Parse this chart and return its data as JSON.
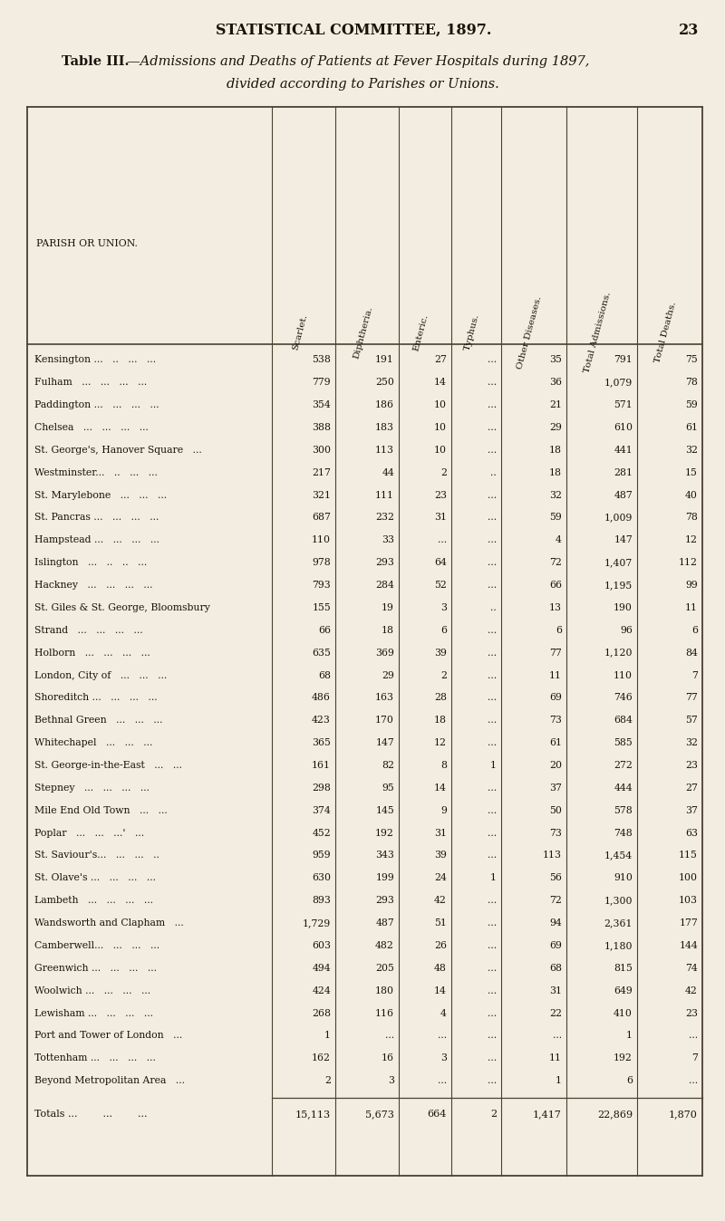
{
  "page_header": "STATISTICAL COMMITTEE, 1897.",
  "page_number": "23",
  "title_prefix": "Table III.",
  "title_line1": "—Admissions and Deaths of Patients at Fever Hospitals during 1897,",
  "title_line2": "divided according to Parishes or Unions.",
  "col_headers": [
    "PARISH OR UNION.",
    "Scarlet.",
    "Diphtheria.",
    "Enteric.",
    "Typhus.",
    "Other Diseases.",
    "Total Admissions.",
    "Total Deaths."
  ],
  "rows": [
    [
      "Kensington ...   ..   ...   ...",
      "538",
      "191",
      "27",
      "...",
      "35",
      "791",
      "75"
    ],
    [
      "Fulham   ...   ...   ...   ...",
      "779",
      "250",
      "14",
      "...",
      "36",
      "1,079",
      "78"
    ],
    [
      "Paddington ...   ...   ...   ...",
      "354",
      "186",
      "10",
      "...",
      "21",
      "571",
      "59"
    ],
    [
      "Chelsea   ...   ...   ...   ...",
      "388",
      "183",
      "10",
      "...",
      "29",
      "610",
      "61"
    ],
    [
      "St. George's, Hanover Square   ...",
      "300",
      "113",
      "10",
      "...",
      "18",
      "441",
      "32"
    ],
    [
      "Westminster...   ..   ...   ...",
      "217",
      "44",
      "2",
      "..",
      "18",
      "281",
      "15"
    ],
    [
      "St. Marylebone   ...   ...   ...",
      "321",
      "111",
      "23",
      "...",
      "32",
      "487",
      "40"
    ],
    [
      "St. Pancras ...   ...   ...   ...",
      "687",
      "232",
      "31",
      "...",
      "59",
      "1,009",
      "78"
    ],
    [
      "Hampstead ...   ...   ...   ...",
      "110",
      "33",
      "...",
      "...",
      "4",
      "147",
      "12"
    ],
    [
      "Islington   ...   ..   ..   ...",
      "978",
      "293",
      "64",
      "...",
      "72",
      "1,407",
      "112"
    ],
    [
      "Hackney   ...   ...   ...   ...",
      "793",
      "284",
      "52",
      "...",
      "66",
      "1,195",
      "99"
    ],
    [
      "St. Giles & St. George, Bloomsbury",
      "155",
      "19",
      "3",
      "..",
      "13",
      "190",
      "11"
    ],
    [
      "Strand   ...   ...   ...   ...",
      "66",
      "18",
      "6",
      "...",
      "6",
      "96",
      "6"
    ],
    [
      "Holborn   ...   ...   ...   ...",
      "635",
      "369",
      "39",
      "...",
      "77",
      "1,120",
      "84"
    ],
    [
      "London, City of   ...   ...   ...",
      "68",
      "29",
      "2",
      "...",
      "11",
      "110",
      "7"
    ],
    [
      "Shoreditch ...   ...   ...   ...",
      "486",
      "163",
      "28",
      "...",
      "69",
      "746",
      "77"
    ],
    [
      "Bethnal Green   ...   ...   ...",
      "423",
      "170",
      "18",
      "...",
      "73",
      "684",
      "57"
    ],
    [
      "Whitechapel   ...   ...   ...",
      "365",
      "147",
      "12",
      "...",
      "61",
      "585",
      "32"
    ],
    [
      "St. George-in-the-East   ...   ...",
      "161",
      "82",
      "8",
      "1",
      "20",
      "272",
      "23"
    ],
    [
      "Stepney   ...   ...   ...   ...",
      "298",
      "95",
      "14",
      "...",
      "37",
      "444",
      "27"
    ],
    [
      "Mile End Old Town   ...   ...",
      "374",
      "145",
      "9",
      "...",
      "50",
      "578",
      "37"
    ],
    [
      "Poplar   ...   ...   ...'   ...",
      "452",
      "192",
      "31",
      "...",
      "73",
      "748",
      "63"
    ],
    [
      "St. Saviour's...   ...   ...   ..",
      "959",
      "343",
      "39",
      "...",
      "113",
      "1,454",
      "115"
    ],
    [
      "St. Olave's ...   ...   ...   ...",
      "630",
      "199",
      "24",
      "1",
      "56",
      "910",
      "100"
    ],
    [
      "Lambeth   ...   ...   ...   ...",
      "893",
      "293",
      "42",
      "...",
      "72",
      "1,300",
      "103"
    ],
    [
      "Wandsworth and Clapham   ...",
      "1,729",
      "487",
      "51",
      "...",
      "94",
      "2,361",
      "177"
    ],
    [
      "Camberwell...   ...   ...   ...",
      "603",
      "482",
      "26",
      "...",
      "69",
      "1,180",
      "144"
    ],
    [
      "Greenwich ...   ...   ...   ...",
      "494",
      "205",
      "48",
      "...",
      "68",
      "815",
      "74"
    ],
    [
      "Woolwich ...   ...   ...   ...",
      "424",
      "180",
      "14",
      "...",
      "31",
      "649",
      "42"
    ],
    [
      "Lewisham ...   ...   ...   ...",
      "268",
      "116",
      "4",
      "...",
      "22",
      "410",
      "23"
    ],
    [
      "Port and Tower of London   ...",
      "1",
      "...",
      "...",
      "...",
      "...",
      "1",
      "..."
    ],
    [
      "Tottenham ...   ...   ...   ...",
      "162",
      "16",
      "3",
      "...",
      "11",
      "192",
      "7"
    ],
    [
      "Beyond Metropolitan Area   ...",
      "2",
      "3",
      "...",
      "...",
      "1",
      "6",
      "..."
    ]
  ],
  "totals_label": "Totals ...        ...        ...",
  "totals": [
    "15,113",
    "5,673",
    "664",
    "2",
    "1,417",
    "22,869",
    "1,870"
  ],
  "bg_color": "#f2ede0",
  "text_color": "#1a1208",
  "line_color": "#4a4030",
  "fig_width": 8.0,
  "fig_height": 13.48
}
